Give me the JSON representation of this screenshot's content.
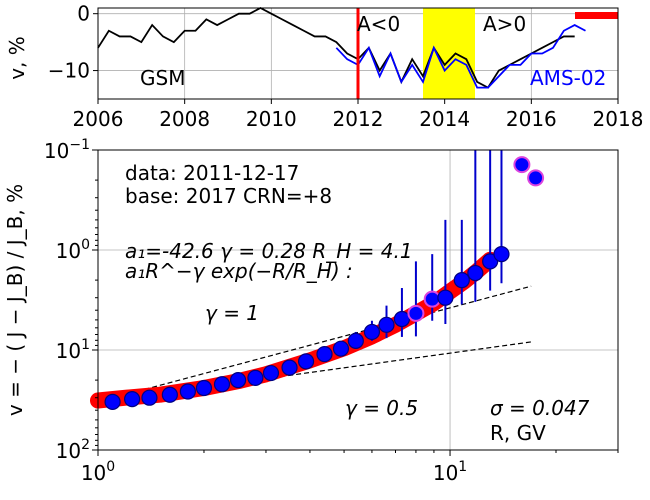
{
  "chart_data": [
    {
      "type": "line",
      "ylabel": "v, %",
      "xlim": [
        2006,
        2018
      ],
      "ylim": [
        -15,
        1
      ],
      "xticks": [
        2006,
        2008,
        2010,
        2012,
        2014,
        2016,
        2018
      ],
      "yticks": [
        0,
        -10
      ],
      "grid": true,
      "series": [
        {
          "name": "GSM",
          "color": "#000000",
          "x": [
            2006.0,
            2006.25,
            2006.5,
            2006.75,
            2007.0,
            2007.25,
            2007.5,
            2007.75,
            2008.0,
            2008.25,
            2008.5,
            2008.75,
            2009.0,
            2009.25,
            2009.5,
            2009.75,
            2010.0,
            2010.25,
            2010.5,
            2010.75,
            2011.0,
            2011.25,
            2011.5,
            2011.75,
            2012.0,
            2012.25,
            2012.5,
            2012.75,
            2013.0,
            2013.25,
            2013.5,
            2013.75,
            2014.0,
            2014.25,
            2014.5,
            2014.75,
            2015.0,
            2015.25,
            2015.5,
            2015.75,
            2016.0,
            2016.25,
            2016.5,
            2016.75,
            2017.0
          ],
          "values": [
            -6,
            -3,
            -4,
            -4,
            -5,
            -2,
            -4,
            -5,
            -3,
            -3,
            -1,
            -2,
            -1,
            0,
            0,
            1,
            0,
            -1,
            -2,
            -3,
            -4,
            -4,
            -5,
            -7,
            -8,
            -6,
            -10,
            -7,
            -12,
            -8,
            -11,
            -6,
            -9,
            -7,
            -8,
            -12,
            -13,
            -10,
            -9,
            -8,
            -7,
            -6,
            -5,
            -4,
            -4
          ]
        },
        {
          "name": "AMS-02",
          "color": "#0000ff",
          "x": [
            2011.5,
            2011.75,
            2012.0,
            2012.25,
            2012.5,
            2012.75,
            2013.0,
            2013.25,
            2013.5,
            2013.75,
            2014.0,
            2014.25,
            2014.5,
            2014.75,
            2015.0,
            2015.25,
            2015.5,
            2015.75,
            2016.0,
            2016.25,
            2016.5,
            2016.75,
            2017.0,
            2017.25
          ],
          "values": [
            -6,
            -8,
            -9,
            -6,
            -11,
            -7,
            -12,
            -9,
            -12,
            -6,
            -10,
            -8,
            -9,
            -13,
            -13,
            -11,
            -9,
            -9,
            -7,
            -7,
            -6,
            -3,
            -2,
            -3
          ]
        }
      ],
      "annotations": [
        "A<0",
        "A>0",
        "GSM",
        "AMS-02"
      ],
      "marker_year": 2012.0,
      "highlight_range": [
        2013.5,
        2014.7
      ],
      "highlight_color": "#ffff00"
    },
    {
      "type": "scatter",
      "xlabel": "R, GV",
      "ylabel": "v =  − ( J − J_B) / J_B, %",
      "x_scale": "log",
      "y_scale": "log-reversed",
      "xlim": [
        1,
        30
      ],
      "ylim": [
        0.1,
        100
      ],
      "xtick_labels": [
        "10^0",
        "10^1"
      ],
      "ytick_labels": [
        "10^-1",
        "10^0",
        "10^1",
        "10^2"
      ],
      "grid": true,
      "text": {
        "data_line": "data: 2011-12-17",
        "base_line": "base: 2017   CRN=+8",
        "fit_params": "a₁=-42.6  γ = 0.28  R_H =  4.1",
        "fit_formula": "a₁R^−γ exp(−R/R_H) :",
        "gamma1_label": "γ = 1",
        "gamma05_label": "γ = 0.5",
        "sigma_label": "σ = 0.047",
        "xaxis_label": "R, GV"
      },
      "points": {
        "R": [
          1.1,
          1.25,
          1.4,
          1.6,
          1.8,
          2.0,
          2.25,
          2.5,
          2.8,
          3.1,
          3.5,
          3.9,
          4.4,
          4.9,
          5.4,
          6.0,
          6.6,
          7.3,
          8.0,
          8.9,
          9.7,
          10.8,
          11.8,
          13.0,
          14.0,
          16.0,
          17.5
        ],
        "v": [
          33,
          31,
          30,
          28,
          26,
          24,
          22,
          20,
          19,
          17,
          15,
          13,
          11,
          9.7,
          8.1,
          6.6,
          5.6,
          4.9,
          4.3,
          3.1,
          3.0,
          2.0,
          1.7,
          1.3,
          1.1,
          0.14,
          0.19
        ],
        "err_upper": [
          1,
          1,
          1,
          1,
          1,
          1,
          1,
          1,
          1,
          1,
          1,
          1,
          1,
          1,
          1.5,
          1.5,
          2,
          2.5,
          3,
          2,
          2.5,
          1.5,
          1.6,
          1.25,
          1.05,
          0,
          0
        ]
      },
      "fit_curve": {
        "R": [
          1.0,
          1.2,
          1.5,
          2.0,
          2.5,
          3.0,
          4.0,
          5.0,
          6.0,
          7.0,
          8.0,
          9.0,
          10.0,
          11.0,
          12.0,
          13.0
        ],
        "v": [
          32,
          30,
          28,
          24,
          20.5,
          17.5,
          12.7,
          9.6,
          7.3,
          5.6,
          4.3,
          3.4,
          2.6,
          2.05,
          1.6,
          1.25
        ]
      },
      "ref_gamma1": {
        "R": [
          1.0,
          17.0
        ],
        "v": [
          33,
          2.3
        ]
      },
      "ref_gamma05": {
        "R": [
          1.0,
          17.0
        ],
        "v": [
          33,
          8.3
        ]
      }
    }
  ]
}
